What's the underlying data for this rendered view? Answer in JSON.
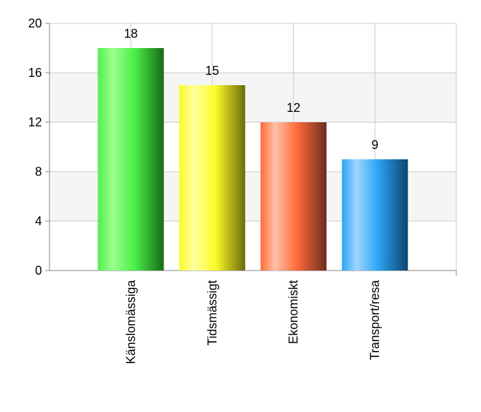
{
  "chart_data": {
    "type": "bar",
    "categories": [
      "Känslomässiga",
      "Tidsmässigt",
      "Ekonomiskt",
      "Transport/resa"
    ],
    "values": [
      18,
      15,
      12,
      9
    ],
    "title": "",
    "xlabel": "",
    "ylabel": "",
    "ylim": [
      0,
      20
    ],
    "yticks": [
      0,
      4,
      8,
      12,
      16,
      20
    ],
    "grid": true,
    "legend": "none",
    "colors": [
      {
        "light": "#9cff8c",
        "base": "#4cf04a",
        "dark": "#156b15"
      },
      {
        "light": "#ffffa0",
        "base": "#fbfb28",
        "dark": "#6b6b0c"
      },
      {
        "light": "#ffc2a8",
        "base": "#ff6a3a",
        "dark": "#6a2e1e"
      },
      {
        "light": "#9ed6ff",
        "base": "#2aa4f4",
        "dark": "#0e446e"
      }
    ]
  }
}
